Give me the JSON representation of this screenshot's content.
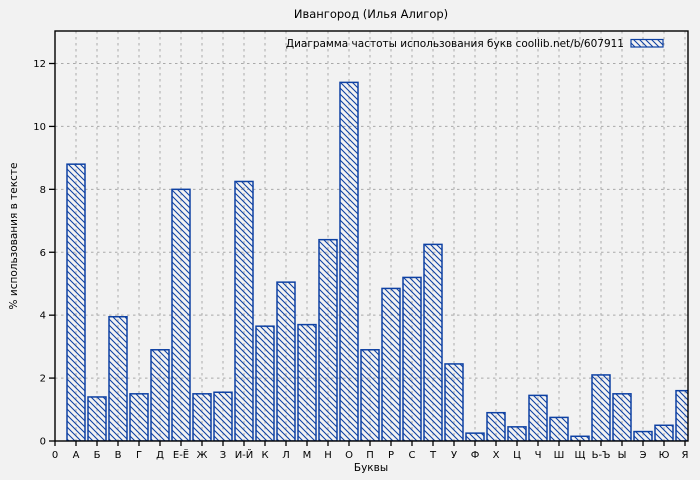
{
  "chart_data": {
    "type": "bar",
    "title": "Ивангород (Илья Алигор)",
    "legend": "Диаграмма частоты использования букв coollib.net/b/607911",
    "legend_position": "top-right-inside",
    "xlabel": "Буквы",
    "ylabel": "% использования в тексте",
    "origin_label": "0",
    "grid": true,
    "yticks": [
      0,
      2,
      4,
      6,
      8,
      10,
      12
    ],
    "ylim": [
      0,
      13
    ],
    "categories": [
      "А",
      "Б",
      "В",
      "Г",
      "Д",
      "Е-Ё",
      "Ж",
      "З",
      "И-Й",
      "К",
      "Л",
      "М",
      "Н",
      "О",
      "П",
      "Р",
      "С",
      "Т",
      "У",
      "Ф",
      "Х",
      "Ц",
      "Ч",
      "Ш",
      "Щ",
      "Ь-Ъ",
      "Ы",
      "Э",
      "Ю",
      "Я"
    ],
    "values": [
      8.8,
      1.4,
      3.95,
      1.5,
      2.9,
      8.0,
      1.5,
      1.55,
      8.25,
      3.65,
      5.05,
      3.7,
      6.4,
      11.4,
      2.9,
      4.85,
      5.2,
      6.25,
      2.45,
      0.25,
      0.9,
      0.45,
      1.45,
      0.75,
      0.15,
      2.1,
      1.5,
      0.3,
      0.5,
      1.6
    ],
    "colors": {
      "bar": "#0e41a3",
      "grid": "#a9a9a9",
      "axis": "#000000",
      "background": "#f2f2f2",
      "text": "#000000"
    }
  }
}
